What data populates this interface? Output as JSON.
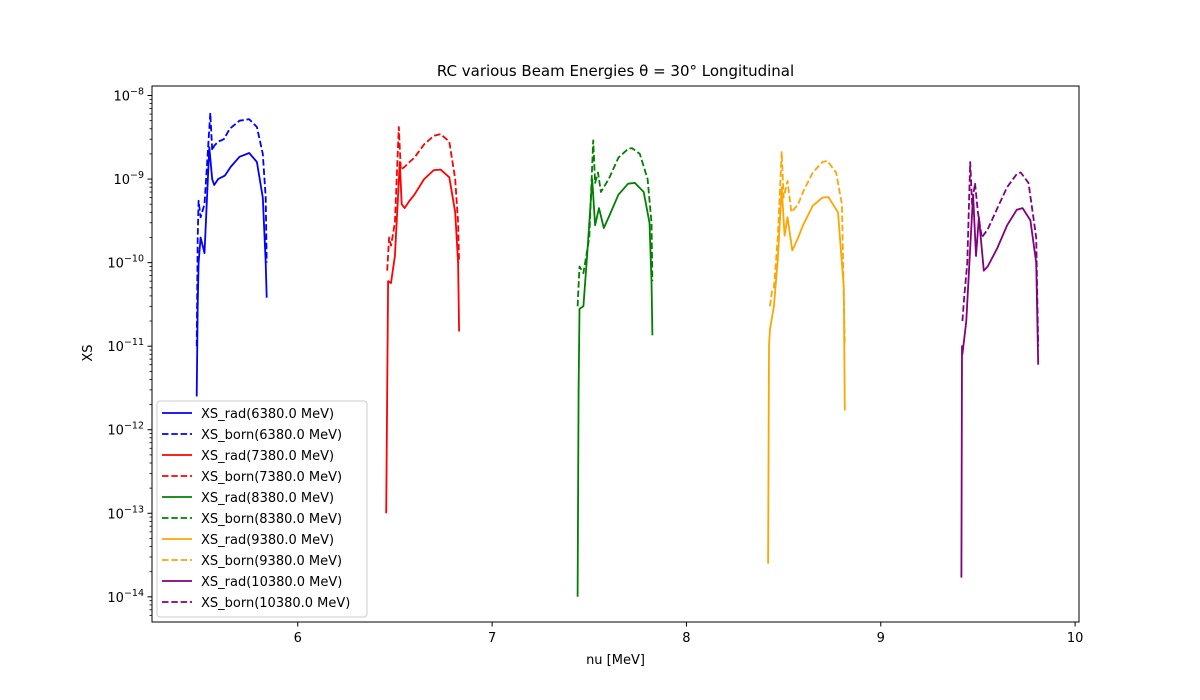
{
  "chart_data": {
    "type": "line",
    "title": "RC various Beam Energies θ = 30° Longitudinal",
    "xlabel": "nu [MeV]",
    "ylabel": "XS",
    "y_scale": "log",
    "xlim": [
      5.25,
      10.02
    ],
    "ylim": [
      5e-15,
      1.3e-08
    ],
    "grid": false,
    "legend_position": "lower-left",
    "x_ticks": [
      6,
      7,
      8,
      9,
      10
    ],
    "x_tick_labels": [
      "6",
      "7",
      "8",
      "9",
      "10"
    ],
    "y_ticks": [
      1e-14,
      1e-13,
      1e-12,
      1e-11,
      1e-10,
      1e-09,
      1e-08
    ],
    "y_tick_labels": [
      {
        "base": "10",
        "exp": "−14"
      },
      {
        "base": "10",
        "exp": "−13"
      },
      {
        "base": "10",
        "exp": "−12"
      },
      {
        "base": "10",
        "exp": "−11"
      },
      {
        "base": "10",
        "exp": "−10"
      },
      {
        "base": "10",
        "exp": "−9"
      },
      {
        "base": "10",
        "exp": "−8"
      }
    ],
    "series": [
      {
        "name": "XS_rad(6380.0 MeV)",
        "color": "#0000ff",
        "dash": "solid",
        "x": [
          5.48,
          5.485,
          5.49,
          5.5,
          5.52,
          5.545,
          5.56,
          5.57,
          5.59,
          5.625,
          5.655,
          5.7,
          5.75,
          5.79,
          5.82,
          5.835,
          5.84
        ],
        "y": [
          2.5e-12,
          3e-11,
          1e-10,
          2e-10,
          1.3e-10,
          2.4e-09,
          1e-09,
          8.5e-10,
          1e-09,
          1.1e-09,
          1.4e-09,
          1.85e-09,
          2.05e-09,
          1.6e-09,
          6e-10,
          1e-10,
          3.8e-11
        ]
      },
      {
        "name": "XS_born(6380.0 MeV)",
        "color": "#0000ff",
        "dash": "dashed",
        "x": [
          5.48,
          5.485,
          5.49,
          5.5,
          5.52,
          5.55,
          5.56,
          5.57,
          5.59,
          5.62,
          5.65,
          5.7,
          5.75,
          5.79,
          5.82,
          5.835,
          5.84
        ],
        "y": [
          1e-11,
          2e-10,
          5.5e-10,
          3.5e-10,
          5e-10,
          6.2e-09,
          2.2e-09,
          2.5e-09,
          2.8e-09,
          3e-09,
          4e-09,
          5e-09,
          5.2e-09,
          4.2e-09,
          2e-09,
          6e-10,
          1e-10
        ]
      },
      {
        "name": "XS_rad(7380.0 MeV)",
        "color": "#ff0000",
        "dash": "solid",
        "x": [
          6.455,
          6.46,
          6.465,
          6.48,
          6.5,
          6.525,
          6.535,
          6.55,
          6.575,
          6.6,
          6.65,
          6.7,
          6.735,
          6.78,
          6.81,
          6.825,
          6.83
        ],
        "y": [
          1e-13,
          3e-12,
          6e-11,
          5.7e-11,
          1.2e-10,
          1.6e-09,
          5e-10,
          4.5e-10,
          5.5e-10,
          6.5e-10,
          1e-09,
          1.28e-09,
          1.3e-09,
          1.05e-09,
          4e-10,
          1e-10,
          1.5e-11
        ]
      },
      {
        "name": "XS_born(7380.0 MeV)",
        "color": "#ff0000",
        "dash": "dashed",
        "x": [
          6.46,
          6.47,
          6.48,
          6.5,
          6.52,
          6.53,
          6.55,
          6.575,
          6.6,
          6.65,
          6.7,
          6.735,
          6.78,
          6.81,
          6.825,
          6.83
        ],
        "y": [
          8e-11,
          2e-10,
          1.6e-10,
          3e-10,
          4.2e-09,
          1.3e-09,
          1.4e-09,
          1.6e-09,
          1.8e-09,
          2.6e-09,
          3.3e-09,
          3.45e-09,
          2.8e-09,
          1e-09,
          3e-10,
          1e-10
        ]
      },
      {
        "name": "XS_rad(8380.0 MeV)",
        "color": "#008000",
        "dash": "solid",
        "x": [
          7.44,
          7.445,
          7.45,
          7.47,
          7.49,
          7.515,
          7.53,
          7.55,
          7.575,
          7.6,
          7.65,
          7.7,
          7.735,
          7.78,
          7.81,
          7.82,
          7.825
        ],
        "y": [
          1e-14,
          3e-12,
          2.8e-11,
          3e-11,
          1.3e-10,
          1e-09,
          2.8e-10,
          4.5e-10,
          2.6e-10,
          3.5e-10,
          6.5e-10,
          8.8e-10,
          9e-10,
          7e-10,
          3e-10,
          6e-11,
          1.35e-11
        ]
      },
      {
        "name": "XS_born(8380.0 MeV)",
        "color": "#008000",
        "dash": "dashed",
        "x": [
          7.44,
          7.45,
          7.47,
          7.5,
          7.52,
          7.53,
          7.545,
          7.56,
          7.6,
          7.65,
          7.7,
          7.72,
          7.76,
          7.8,
          7.82,
          7.825
        ],
        "y": [
          3e-11,
          9e-11,
          7.5e-11,
          2e-10,
          2.9e-09,
          9e-10,
          1.2e-09,
          7e-10,
          1e-09,
          1.8e-09,
          2.3e-09,
          2.35e-09,
          2e-09,
          1e-09,
          3e-10,
          6e-11
        ]
      },
      {
        "name": "XS_rad(9380.0 MeV)",
        "color": "#ffa500",
        "dash": "solid",
        "x": [
          8.42,
          8.425,
          8.43,
          8.45,
          8.47,
          8.49,
          8.505,
          8.52,
          8.545,
          8.575,
          8.6,
          8.65,
          8.7,
          8.73,
          8.78,
          8.81,
          8.815
        ],
        "y": [
          2.5e-14,
          1e-11,
          1.6e-11,
          3e-11,
          1.1e-10,
          8e-10,
          2.1e-10,
          3.5e-10,
          1.4e-10,
          2e-10,
          2.8e-10,
          4.8e-10,
          6e-10,
          6.1e-10,
          4e-10,
          5e-11,
          1.7e-12
        ]
      },
      {
        "name": "XS_born(9380.0 MeV)",
        "color": "#ffa500",
        "dash": "dashed",
        "x": [
          8.43,
          8.44,
          8.45,
          8.47,
          8.49,
          8.5,
          8.52,
          8.54,
          8.575,
          8.6,
          8.65,
          8.7,
          8.725,
          8.77,
          8.8,
          8.815
        ],
        "y": [
          3e-11,
          4.5e-11,
          5e-11,
          2e-10,
          2.1e-09,
          6e-10,
          9.5e-10,
          4e-10,
          5e-10,
          7e-10,
          1.2e-09,
          1.6e-09,
          1.65e-09,
          1.2e-09,
          5e-10,
          1e-11
        ]
      },
      {
        "name": "XS_rad(10380.0 MeV)",
        "color": "#800080",
        "dash": "solid",
        "x": [
          9.415,
          9.418,
          9.42,
          9.44,
          9.46,
          9.475,
          9.49,
          9.505,
          9.53,
          9.55,
          9.6,
          9.65,
          9.7,
          9.73,
          9.77,
          9.8,
          9.81
        ],
        "y": [
          1.7e-14,
          1e-11,
          8e-12,
          2e-11,
          1.5e-10,
          6.5e-10,
          1.2e-10,
          3.5e-10,
          8e-11,
          9e-11,
          1.5e-10,
          2.8e-10,
          4.3e-10,
          4.5e-10,
          3.2e-10,
          1e-10,
          6e-12
        ]
      },
      {
        "name": "XS_born(10380.0 MeV)",
        "color": "#800080",
        "dash": "dashed",
        "x": [
          9.42,
          9.43,
          9.445,
          9.46,
          9.47,
          9.485,
          9.5,
          9.52,
          9.55,
          9.6,
          9.65,
          9.7,
          9.72,
          9.76,
          9.8,
          9.81
        ],
        "y": [
          2e-11,
          4e-11,
          1e-10,
          1.6e-09,
          5e-10,
          9e-10,
          4e-10,
          2e-10,
          2.5e-10,
          4.5e-10,
          8e-10,
          1.15e-09,
          1.2e-09,
          9e-10,
          2e-10,
          1e-11
        ]
      }
    ]
  }
}
